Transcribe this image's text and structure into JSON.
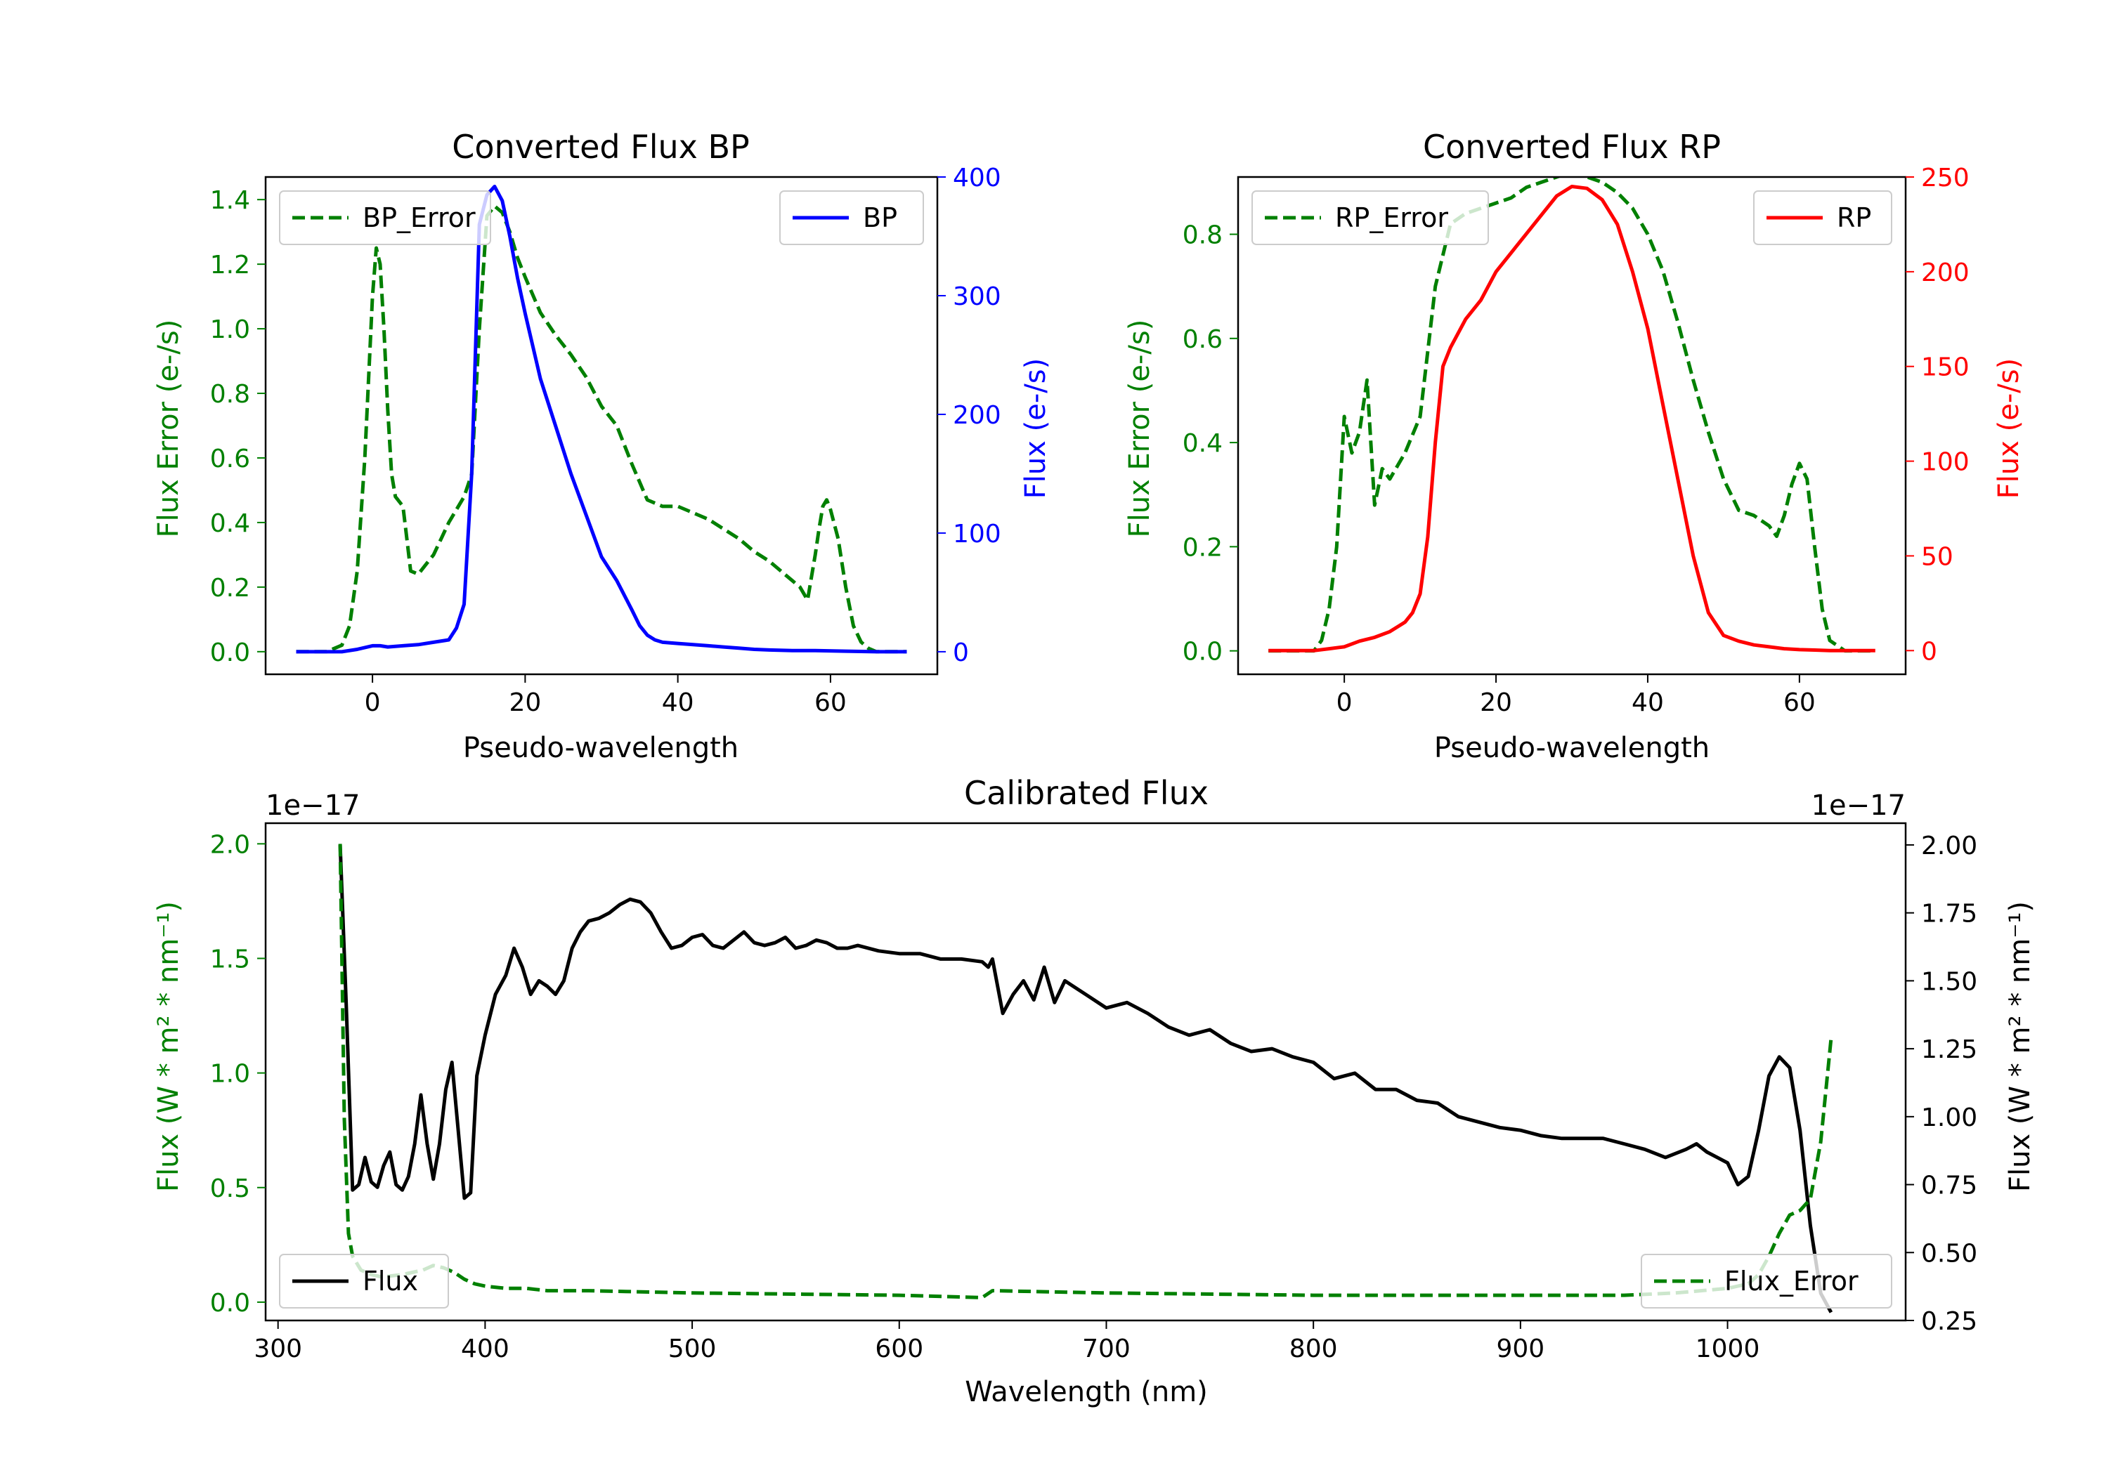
{
  "chart_data": [
    {
      "type": "line",
      "title": "Converted Flux BP",
      "xlabel": "Pseudo-wavelength",
      "ylabel_left": "Flux Error (e-/s)",
      "ylabel_right": "Flux (e-/s)",
      "xlim": [
        -14,
        74
      ],
      "xticks": [
        0,
        20,
        40,
        60
      ],
      "ylim_left": [
        -0.07,
        1.47
      ],
      "yticks_left": [
        "0.0",
        "0.2",
        "0.4",
        "0.6",
        "0.8",
        "1.0",
        "1.2",
        "1.4"
      ],
      "ylim_right": [
        -19,
        400
      ],
      "yticks_right": [
        "0",
        "100",
        "200",
        "300",
        "400"
      ],
      "legend": [
        {
          "name": "BP_Error",
          "position": "upper left"
        },
        {
          "name": "BP",
          "position": "upper right"
        }
      ],
      "series": [
        {
          "name": "BP_Error",
          "axis": "left",
          "color": "#008000",
          "style": "dashed",
          "x": [
            -10,
            -6,
            -4,
            -3,
            -2,
            -1,
            0,
            0.5,
            1,
            1.5,
            2,
            2.5,
            3,
            4,
            4.5,
            5,
            6,
            7,
            8,
            9,
            10,
            11,
            12,
            13,
            14,
            15,
            16,
            17,
            18,
            19,
            20,
            22,
            24,
            26,
            28,
            30,
            32,
            34,
            36,
            38,
            40,
            42,
            44,
            46,
            48,
            50,
            52,
            54,
            55,
            56,
            57,
            58,
            58.5,
            59,
            59.5,
            60,
            61,
            62,
            63,
            64,
            65,
            66,
            68,
            70
          ],
          "y": [
            0,
            0,
            0.02,
            0.08,
            0.25,
            0.6,
            1.1,
            1.25,
            1.2,
            1.0,
            0.75,
            0.55,
            0.48,
            0.45,
            0.35,
            0.25,
            0.24,
            0.27,
            0.3,
            0.35,
            0.4,
            0.44,
            0.48,
            0.55,
            1.0,
            1.35,
            1.38,
            1.36,
            1.3,
            1.22,
            1.16,
            1.05,
            0.98,
            0.92,
            0.85,
            0.76,
            0.7,
            0.58,
            0.47,
            0.45,
            0.45,
            0.43,
            0.41,
            0.38,
            0.35,
            0.31,
            0.28,
            0.24,
            0.22,
            0.2,
            0.16,
            0.3,
            0.38,
            0.45,
            0.47,
            0.44,
            0.35,
            0.2,
            0.08,
            0.03,
            0.01,
            0,
            0,
            0
          ]
        },
        {
          "name": "BP",
          "axis": "right",
          "color": "#0000ff",
          "style": "solid",
          "x": [
            -10,
            -4,
            -2,
            0,
            1,
            2,
            4,
            6,
            8,
            10,
            11,
            12,
            13,
            14,
            15,
            16,
            17,
            18,
            19,
            20,
            22,
            24,
            26,
            28,
            30,
            32,
            34,
            35,
            36,
            37,
            38,
            40,
            42,
            44,
            46,
            48,
            50,
            52,
            55,
            58,
            62,
            66,
            70
          ],
          "y": [
            0,
            0,
            2,
            5,
            5,
            4,
            5,
            6,
            8,
            10,
            20,
            40,
            150,
            360,
            385,
            392,
            380,
            350,
            315,
            285,
            230,
            190,
            150,
            115,
            80,
            60,
            35,
            22,
            14,
            10,
            8,
            7,
            6,
            5,
            4,
            3,
            2,
            1.5,
            1,
            1,
            0.5,
            0,
            0
          ]
        }
      ]
    },
    {
      "type": "line",
      "title": "Converted Flux RP",
      "xlabel": "Pseudo-wavelength",
      "ylabel_left": "Flux Error (e-/s)",
      "ylabel_right": "Flux (e-/s)",
      "xlim": [
        -14,
        74
      ],
      "xticks": [
        0,
        20,
        40,
        60
      ],
      "ylim_left": [
        -0.045,
        0.91
      ],
      "yticks_left": [
        "0.0",
        "0.2",
        "0.4",
        "0.6",
        "0.8"
      ],
      "ylim_right": [
        -12.5,
        250
      ],
      "yticks_right": [
        "0",
        "50",
        "100",
        "150",
        "200",
        "250"
      ],
      "legend": [
        {
          "name": "RP_Error",
          "position": "upper left"
        },
        {
          "name": "RP",
          "position": "upper right"
        }
      ],
      "series": [
        {
          "name": "RP_Error",
          "axis": "left",
          "color": "#008000",
          "style": "dashed",
          "x": [
            -10,
            -4,
            -3,
            -2,
            -1,
            0,
            1,
            2,
            3,
            4,
            5,
            6,
            8,
            10,
            12,
            14,
            16,
            18,
            20,
            22,
            24,
            26,
            28,
            30,
            32,
            34,
            36,
            38,
            40,
            42,
            44,
            46,
            48,
            50,
            52,
            54,
            56,
            57,
            58,
            59,
            60,
            61,
            62,
            63,
            64,
            66,
            70
          ],
          "y": [
            0,
            0,
            0.02,
            0.08,
            0.2,
            0.45,
            0.38,
            0.42,
            0.52,
            0.28,
            0.35,
            0.33,
            0.38,
            0.45,
            0.7,
            0.82,
            0.84,
            0.85,
            0.86,
            0.87,
            0.89,
            0.9,
            0.91,
            0.92,
            0.91,
            0.9,
            0.88,
            0.85,
            0.8,
            0.73,
            0.63,
            0.52,
            0.42,
            0.33,
            0.27,
            0.26,
            0.24,
            0.22,
            0.26,
            0.32,
            0.36,
            0.33,
            0.2,
            0.08,
            0.02,
            0,
            0
          ]
        },
        {
          "name": "RP",
          "axis": "right",
          "color": "#ff0000",
          "style": "solid",
          "x": [
            -10,
            -4,
            -2,
            0,
            2,
            4,
            6,
            8,
            9,
            10,
            11,
            12,
            13,
            14,
            16,
            18,
            20,
            22,
            24,
            26,
            28,
            30,
            32,
            34,
            36,
            38,
            40,
            42,
            44,
            46,
            48,
            50,
            52,
            54,
            56,
            58,
            60,
            62,
            64,
            66,
            70
          ],
          "y": [
            0,
            0,
            1,
            2,
            5,
            7,
            10,
            15,
            20,
            30,
            60,
            110,
            150,
            160,
            175,
            185,
            200,
            210,
            220,
            230,
            240,
            245,
            244,
            238,
            225,
            200,
            170,
            130,
            90,
            50,
            20,
            8,
            5,
            3,
            2,
            1,
            0.5,
            0.3,
            0,
            0,
            0
          ]
        }
      ]
    },
    {
      "type": "line",
      "title": "Calibrated Flux",
      "xlabel": "Wavelength (nm)",
      "ylabel_left": "Flux (W * m² * nm⁻¹)",
      "ylabel_right": "Flux (W * m² * nm⁻¹)",
      "offset_left": "1e−17",
      "offset_right": "1e−17",
      "xlim": [
        294,
        1086
      ],
      "xticks": [
        300,
        400,
        500,
        600,
        700,
        800,
        900,
        1000
      ],
      "ylim_left": [
        -0.08,
        2.09
      ],
      "yticks_left": [
        "0.0",
        "0.5",
        "1.0",
        "1.5",
        "2.0"
      ],
      "ylim_right": [
        0.25,
        2.08
      ],
      "yticks_right": [
        "0.25",
        "0.50",
        "0.75",
        "1.00",
        "1.25",
        "1.50",
        "1.75",
        "2.00"
      ],
      "legend": [
        {
          "name": "Flux",
          "position": "lower left"
        },
        {
          "name": "Flux_Error",
          "position": "lower right"
        }
      ],
      "series": [
        {
          "name": "Flux",
          "axis": "right",
          "color": "#000000",
          "style": "solid",
          "x": [
            330,
            333,
            336,
            339,
            342,
            345,
            348,
            351,
            354,
            357,
            360,
            363,
            366,
            369,
            372,
            375,
            378,
            381,
            384,
            387,
            390,
            393,
            396,
            400,
            405,
            410,
            414,
            418,
            422,
            426,
            430,
            434,
            438,
            442,
            446,
            450,
            455,
            460,
            465,
            470,
            475,
            480,
            485,
            490,
            495,
            500,
            505,
            510,
            515,
            520,
            525,
            530,
            535,
            540,
            545,
            550,
            555,
            560,
            565,
            570,
            575,
            580,
            590,
            600,
            610,
            620,
            630,
            640,
            643,
            645,
            650,
            655,
            660,
            665,
            670,
            675,
            680,
            690,
            700,
            710,
            720,
            730,
            740,
            750,
            760,
            770,
            780,
            790,
            800,
            810,
            820,
            830,
            840,
            850,
            860,
            870,
            880,
            890,
            900,
            910,
            920,
            930,
            940,
            950,
            960,
            970,
            980,
            985,
            990,
            1000,
            1005,
            1010,
            1015,
            1020,
            1025,
            1030,
            1035,
            1040,
            1045,
            1050
          ],
          "y": [
            2.0,
            1.4,
            0.73,
            0.75,
            0.85,
            0.76,
            0.74,
            0.82,
            0.87,
            0.75,
            0.73,
            0.78,
            0.9,
            1.08,
            0.9,
            0.77,
            0.9,
            1.1,
            1.2,
            0.95,
            0.7,
            0.72,
            1.15,
            1.3,
            1.45,
            1.52,
            1.62,
            1.55,
            1.45,
            1.5,
            1.48,
            1.45,
            1.5,
            1.62,
            1.68,
            1.72,
            1.73,
            1.75,
            1.78,
            1.8,
            1.79,
            1.75,
            1.68,
            1.62,
            1.63,
            1.66,
            1.67,
            1.63,
            1.62,
            1.65,
            1.68,
            1.64,
            1.63,
            1.64,
            1.66,
            1.62,
            1.63,
            1.65,
            1.64,
            1.62,
            1.62,
            1.63,
            1.61,
            1.6,
            1.6,
            1.58,
            1.58,
            1.57,
            1.55,
            1.58,
            1.38,
            1.45,
            1.5,
            1.43,
            1.55,
            1.42,
            1.5,
            1.45,
            1.4,
            1.42,
            1.38,
            1.33,
            1.3,
            1.32,
            1.27,
            1.24,
            1.25,
            1.22,
            1.2,
            1.14,
            1.16,
            1.1,
            1.1,
            1.06,
            1.05,
            1.0,
            0.98,
            0.96,
            0.95,
            0.93,
            0.92,
            0.92,
            0.92,
            0.9,
            0.88,
            0.85,
            0.88,
            0.9,
            0.87,
            0.83,
            0.75,
            0.78,
            0.95,
            1.15,
            1.22,
            1.18,
            0.95,
            0.6,
            0.35,
            0.28
          ]
        },
        {
          "name": "Flux_Error",
          "axis": "left",
          "color": "#008000",
          "style": "dashed",
          "x": [
            330,
            332,
            334,
            336,
            340,
            345,
            350,
            360,
            370,
            375,
            380,
            385,
            390,
            395,
            400,
            410,
            420,
            430,
            450,
            500,
            600,
            640,
            645,
            700,
            800,
            900,
            950,
            975,
            1000,
            1010,
            1015,
            1020,
            1025,
            1030,
            1035,
            1040,
            1045,
            1050
          ],
          "y": [
            2.0,
            0.8,
            0.3,
            0.2,
            0.14,
            0.12,
            0.11,
            0.12,
            0.14,
            0.16,
            0.15,
            0.13,
            0.1,
            0.08,
            0.07,
            0.06,
            0.06,
            0.05,
            0.05,
            0.04,
            0.03,
            0.02,
            0.05,
            0.04,
            0.03,
            0.03,
            0.03,
            0.04,
            0.06,
            0.08,
            0.12,
            0.2,
            0.3,
            0.38,
            0.4,
            0.45,
            0.7,
            1.15
          ]
        }
      ]
    }
  ]
}
